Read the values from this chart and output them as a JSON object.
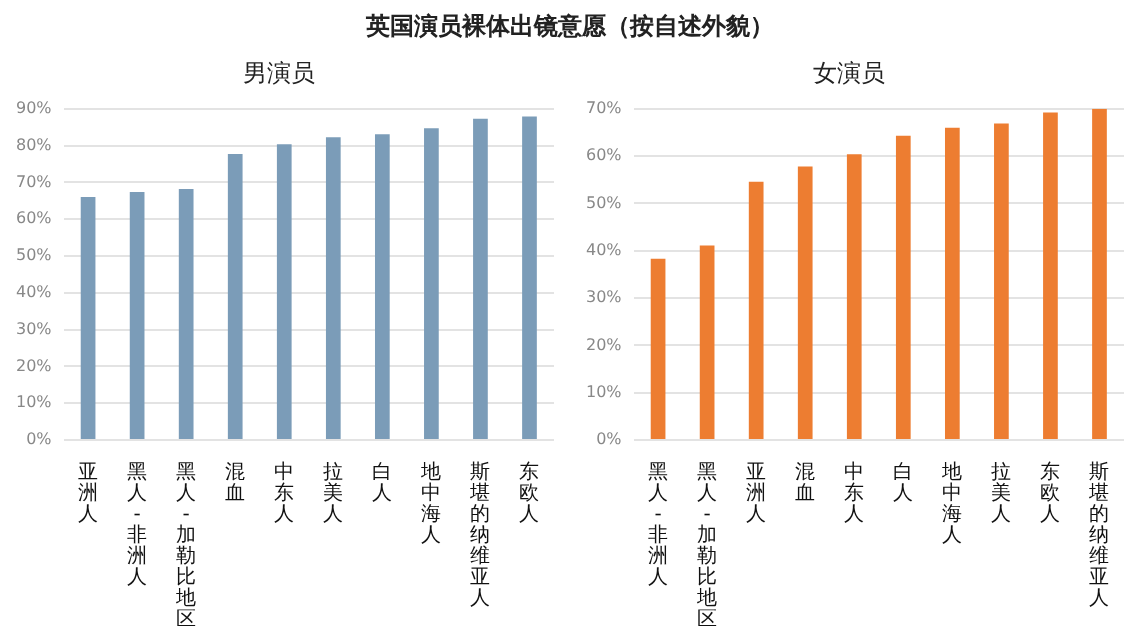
{
  "chart_data": [
    {
      "type": "bar",
      "title": "男演员",
      "annotations": [
        "英国演员裸体出镜意愿（按自述外貌）"
      ],
      "categories": [
        "亚洲人",
        "黑人-非洲人",
        "黑人-加勒比地区",
        "混血",
        "中东人",
        "拉美人",
        "白人",
        "地中海人",
        "斯堪的纳维亚人",
        "东欧人"
      ],
      "values": [
        66,
        67.4,
        68.2,
        77.7,
        80.4,
        82.3,
        83.1,
        84.7,
        87.3,
        87.9
      ],
      "color": "#7b9cb8",
      "ylim": [
        0,
        90
      ],
      "yticks": [
        {
          "value": 0,
          "label": "0%"
        },
        {
          "value": 10,
          "label": "10%"
        },
        {
          "value": 20,
          "label": "20%"
        },
        {
          "value": 30,
          "label": "30%"
        },
        {
          "value": 40,
          "label": "40%"
        },
        {
          "value": 50,
          "label": "50%"
        },
        {
          "value": 60,
          "label": "60%"
        },
        {
          "value": 70,
          "label": "70%"
        },
        {
          "value": 80,
          "label": "80%"
        },
        {
          "value": 90,
          "label": "90%"
        }
      ],
      "grid": "y"
    },
    {
      "type": "bar",
      "title": "女演员",
      "categories": [
        "黑人-非洲人",
        "黑人-加勒比地区",
        "亚洲人",
        "混血",
        "中东人",
        "白人",
        "地中海人",
        "拉美人",
        "东欧人",
        "斯堪的纳维亚人"
      ],
      "values": [
        38.3,
        41.1,
        54.6,
        57.8,
        60.4,
        64.3,
        66,
        66.9,
        69.2,
        70
      ],
      "color": "#ed7d31",
      "ylim": [
        0,
        70
      ],
      "yticks": [
        {
          "value": 0,
          "label": "0%"
        },
        {
          "value": 10,
          "label": "10%"
        },
        {
          "value": 20,
          "label": "20%"
        },
        {
          "value": 30,
          "label": "30%"
        },
        {
          "value": 40,
          "label": "40%"
        },
        {
          "value": 50,
          "label": "50%"
        },
        {
          "value": 60,
          "label": "60%"
        },
        {
          "value": 70,
          "label": "70%"
        }
      ],
      "grid": "y"
    }
  ]
}
